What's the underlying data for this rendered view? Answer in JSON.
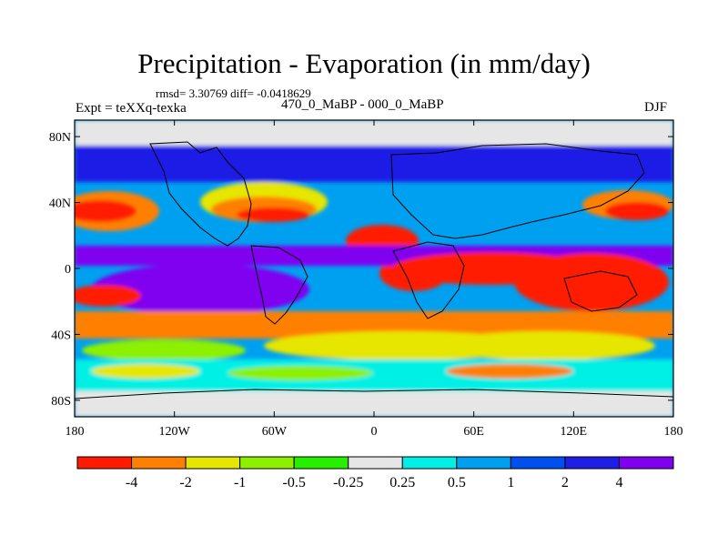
{
  "title": "Precipitation - Evaporation (in mm/day)",
  "stats_text": "rmsd= 3.30769 diff= -0.0418629",
  "experiment_label": "Expt = teXXq-texka",
  "period_label": "470_0_MaBP - 000_0_MaBP",
  "season_label": "DJF",
  "map": {
    "lat_ticks": [
      {
        "label": "80N",
        "lat": 80
      },
      {
        "label": "40N",
        "lat": 40
      },
      {
        "label": "0",
        "lat": 0
      },
      {
        "label": "40S",
        "lat": -40
      },
      {
        "label": "80S",
        "lat": -80
      }
    ],
    "lon_ticks": [
      {
        "label": "180",
        "lon": -180
      },
      {
        "label": "120W",
        "lon": -120
      },
      {
        "label": "60W",
        "lon": -60
      },
      {
        "label": "0",
        "lon": 0
      },
      {
        "label": "60E",
        "lon": 60
      },
      {
        "label": "120E",
        "lon": 120
      },
      {
        "label": "180",
        "lon": 180
      }
    ]
  },
  "colorbar": {
    "colors": [
      "#ff1a00",
      "#ff8000",
      "#e6e600",
      "#8cf000",
      "#26f000",
      "#e6e6e6",
      "#00f0e6",
      "#00a0f0",
      "#0050f0",
      "#1e1ee6",
      "#8000f0"
    ],
    "labels": [
      "-4",
      "-2",
      "-1",
      "-0.5",
      "-0.25",
      "0.25",
      "0.5",
      "1",
      "2",
      "4"
    ]
  }
}
